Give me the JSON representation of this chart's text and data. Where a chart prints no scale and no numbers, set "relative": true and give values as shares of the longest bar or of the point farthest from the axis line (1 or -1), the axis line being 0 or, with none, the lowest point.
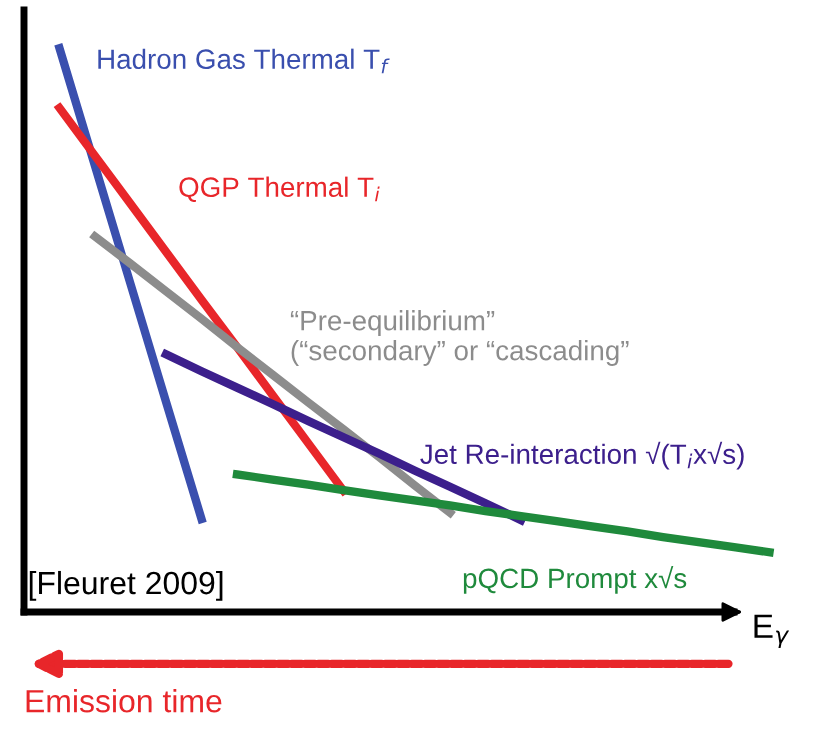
{
  "chart_data": {
    "type": "line",
    "relative": true,
    "xlabel": "E$_{γ}$",
    "legend": false,
    "marker": "none",
    "line_style": "solid",
    "categories": [
      null,
      null,
      null,
      null,
      null,
      null,
      null,
      null,
      null,
      null,
      null,
      null,
      null,
      null,
      null,
      null,
      null,
      null,
      null,
      null,
      null,
      null
    ],
    "series": [
      {
        "name": "Hadron Gas Thermal T$_{f}$",
        "color": "#3a4fae",
        "values": [
          null,
          1.0,
          0.791,
          0.582,
          0.373,
          0.165,
          null,
          null,
          null,
          null,
          null,
          null,
          null,
          null,
          null,
          null,
          null,
          null,
          null,
          null,
          null,
          null
        ]
      },
      {
        "name": "QGP Thermal T$_{i}$",
        "color": "#e8262a",
        "values": [
          null,
          0.894,
          0.809,
          0.724,
          0.639,
          0.554,
          0.47,
          0.385,
          0.3,
          0.215,
          null,
          null,
          null,
          null,
          null,
          null,
          null,
          null,
          null,
          null,
          null,
          null
        ]
      },
      {
        "name": "“Pre-equilibrium”\n(“secondary” or “cascading”",
        "color": "#8c8c8c",
        "values": [
          null,
          null,
          0.666,
          0.618,
          0.569,
          0.52,
          0.47,
          0.421,
          0.372,
          0.324,
          0.275,
          0.225,
          0.176,
          null,
          null,
          null,
          null,
          null,
          null,
          null,
          null,
          null
        ]
      },
      {
        "name": "Jet Re-interaction √(T$_{i}$x√s)",
        "color": "#3c1f8c",
        "values": [
          null,
          null,
          null,
          null,
          0.457,
          0.427,
          0.398,
          0.369,
          0.339,
          0.31,
          0.281,
          0.251,
          0.222,
          0.193,
          0.163,
          null,
          null,
          null,
          null,
          null,
          null,
          null
        ]
      },
      {
        "name": "pQCD Prompt x√s",
        "color": "#1f8a3c",
        "values": [
          null,
          null,
          null,
          null,
          null,
          null,
          0.244,
          0.235,
          0.226,
          0.216,
          0.207,
          0.198,
          0.189,
          0.179,
          0.17,
          0.161,
          0.152,
          0.143,
          0.133,
          0.124,
          0.115,
          0.106
        ]
      }
    ],
    "annotations": [
      "[Fleuret 2009]",
      "Emission time"
    ]
  }
}
